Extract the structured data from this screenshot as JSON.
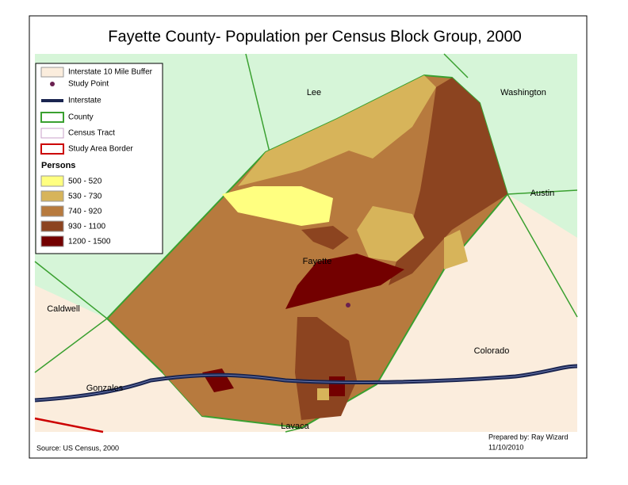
{
  "title": "Fayette County- Population per Census Block Group, 2000",
  "legend": {
    "items": [
      "Interstate 10 Mile Buffer",
      "Study Point",
      "Interstate",
      "County",
      "Census Tract",
      "Study Area Border"
    ],
    "heading": "Persons",
    "classes": [
      {
        "label": "500 - 520",
        "color": "#ffff80"
      },
      {
        "label": "530 - 730",
        "color": "#d7b45a"
      },
      {
        "label": "740 - 920",
        "color": "#b77a3e"
      },
      {
        "label": "930 - 1100",
        "color": "#8c4420"
      },
      {
        "label": "1200 - 1500",
        "color": "#730000"
      }
    ]
  },
  "labels": {
    "lee": "Lee",
    "washington": "Washington",
    "austin": "Austin",
    "caldwell": "Caldwell",
    "fayette": "Fayette",
    "colorado": "Colorado",
    "gonzales": "Gonzales",
    "lavaca": "Lavaca"
  },
  "source": "Source: US Census, 2000",
  "credit": {
    "prepared": "Prepared by: Ray Wizard",
    "date": "11/10/2010"
  }
}
